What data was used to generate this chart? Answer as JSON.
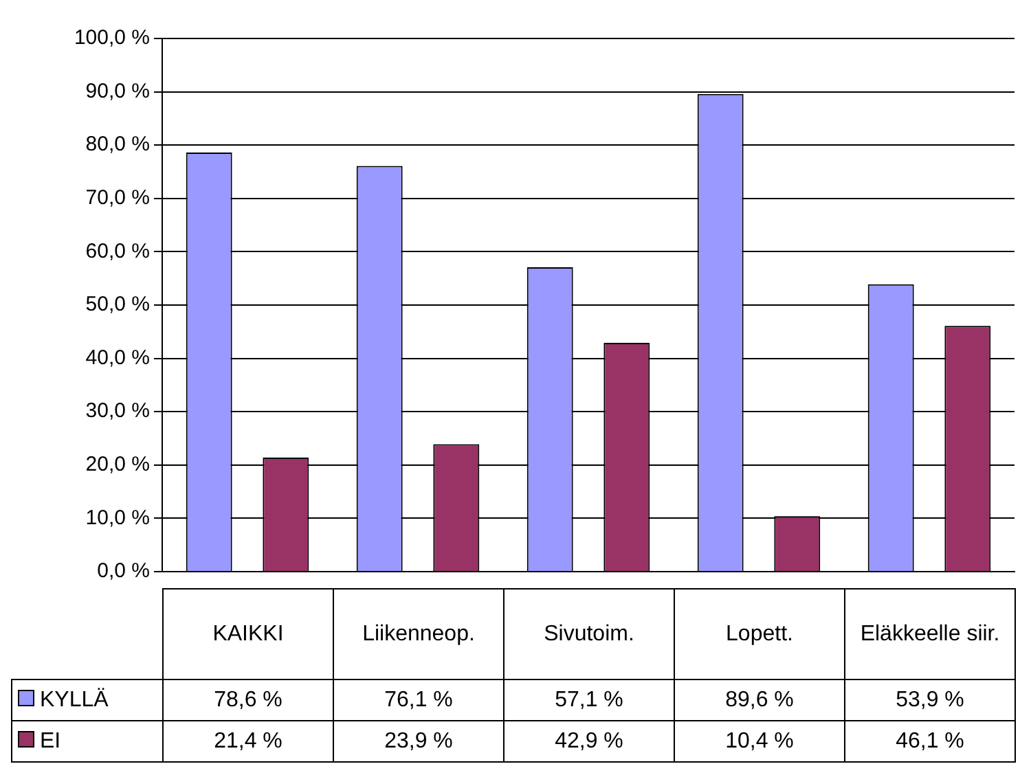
{
  "chart_data": {
    "type": "bar",
    "categories": [
      "KAIKKI",
      "Liikenneop.",
      "Sivutoim.",
      "Lopett.",
      "Eläkkeelle siir."
    ],
    "series": [
      {
        "name": "KYLLÄ",
        "color": "#9999ff",
        "values": [
          78.6,
          76.1,
          57.1,
          89.6,
          53.9
        ],
        "value_labels": [
          "78,6 %",
          "76,1 %",
          "57,1 %",
          "89,6 %",
          "53,9 %"
        ]
      },
      {
        "name": "EI",
        "color": "#993366",
        "values": [
          21.4,
          23.9,
          42.9,
          10.4,
          46.1
        ],
        "value_labels": [
          "21,4 %",
          "23,9 %",
          "42,9 %",
          "10,4 %",
          "46,1 %"
        ]
      }
    ],
    "ylim": [
      0,
      100
    ],
    "yticks": [
      {
        "value": 0,
        "label": "0,0 %"
      },
      {
        "value": 10,
        "label": "10,0 %"
      },
      {
        "value": 20,
        "label": "20,0 %"
      },
      {
        "value": 30,
        "label": "30,0 %"
      },
      {
        "value": 40,
        "label": "40,0 %"
      },
      {
        "value": 50,
        "label": "50,0 %"
      },
      {
        "value": 60,
        "label": "60,0 %"
      },
      {
        "value": 70,
        "label": "70,0 %"
      },
      {
        "value": 80,
        "label": "80,0 %"
      },
      {
        "value": 90,
        "label": "90,0 %"
      },
      {
        "value": 100,
        "label": "100,0 %"
      }
    ],
    "grid": "y",
    "legend": "bottom"
  }
}
